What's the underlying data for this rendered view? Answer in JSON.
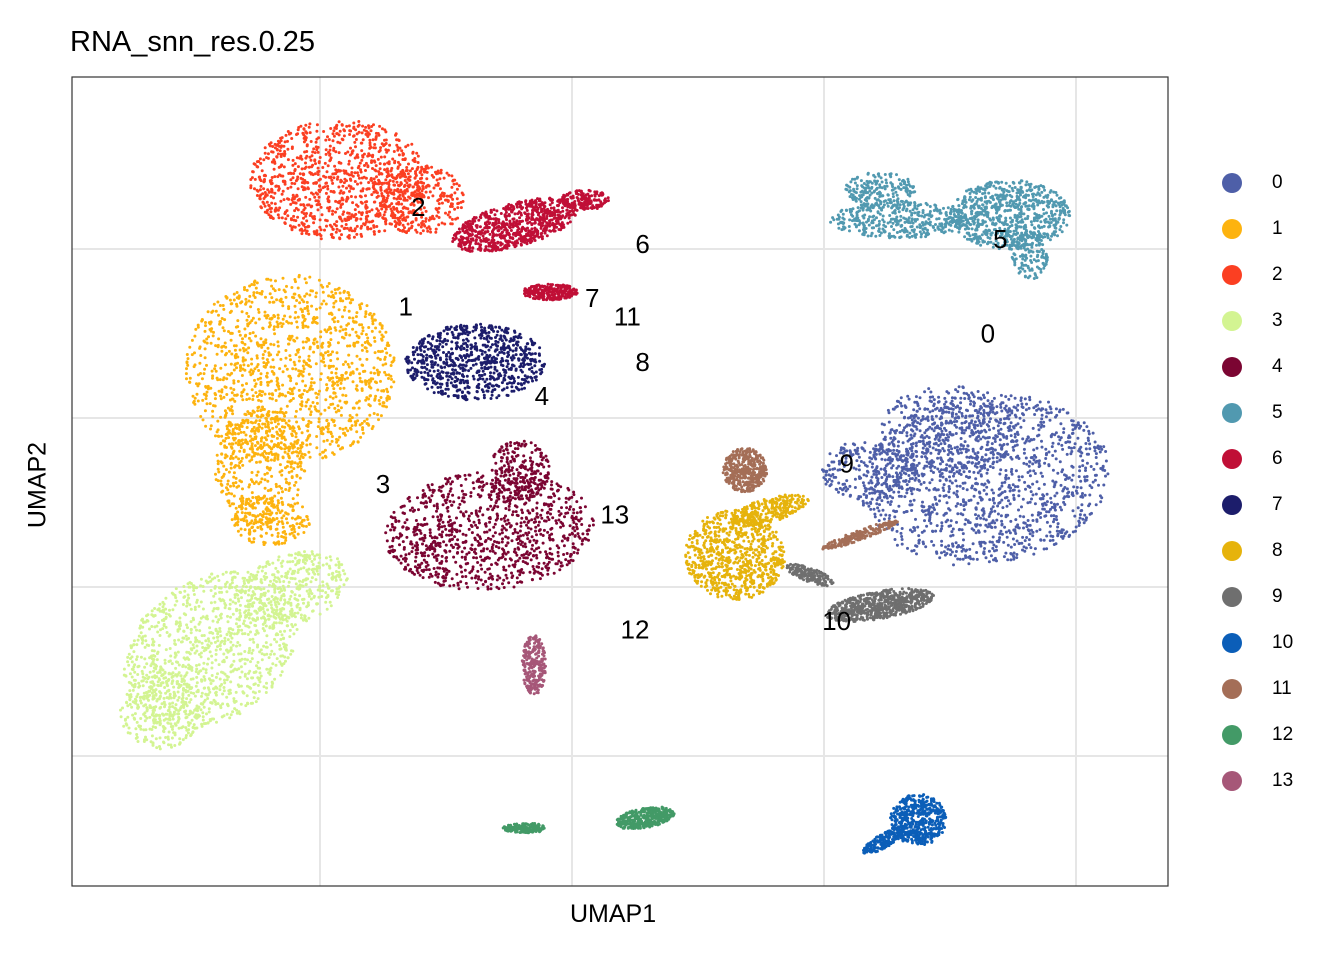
{
  "chart_data": {
    "type": "scatter",
    "title": "RNA_snn_res.0.25",
    "xlabel": "UMAP1",
    "ylabel": "UMAP2",
    "grid": true,
    "axis_ticks_labeled": false,
    "legend_position": "right",
    "clusters": [
      {
        "name": "0",
        "label": "0",
        "color": "#4E5FA8",
        "centroid": [
          16.5,
          5.0
        ]
      },
      {
        "name": "1",
        "label": "1",
        "color": "#FDB30F",
        "centroid": [
          -6.6,
          6.6
        ]
      },
      {
        "name": "2",
        "label": "2",
        "color": "#FB3F22",
        "centroid": [
          -6.1,
          12.5
        ]
      },
      {
        "name": "3",
        "label": "3",
        "color": "#D3F492",
        "centroid": [
          -7.5,
          -3.9
        ]
      },
      {
        "name": "4",
        "label": "4",
        "color": "#7B0532",
        "centroid": [
          -1.2,
          1.3
        ]
      },
      {
        "name": "5",
        "label": "5",
        "color": "#5199B0",
        "centroid": [
          17.0,
          10.6
        ]
      },
      {
        "name": "6",
        "label": "6",
        "color": "#C00F36",
        "centroid": [
          2.8,
          10.3
        ]
      },
      {
        "name": "7",
        "label": "7",
        "color": "#1C1D6B",
        "centroid": [
          0.8,
          7.1
        ]
      },
      {
        "name": "8",
        "label": "8",
        "color": "#E6B30C",
        "centroid": [
          2.8,
          3.3
        ]
      },
      {
        "name": "9",
        "label": "9",
        "color": "#6F6F6F",
        "centroid": [
          10.9,
          -2.7
        ]
      },
      {
        "name": "10",
        "label": "10",
        "color": "#0B5EB8",
        "centroid": [
          10.5,
          -12.0
        ]
      },
      {
        "name": "11",
        "label": "11",
        "color": "#A46E57",
        "centroid": [
          2.2,
          6.0
        ]
      },
      {
        "name": "12",
        "label": "12",
        "color": "#439A67",
        "centroid": [
          2.5,
          -12.5
        ]
      },
      {
        "name": "13",
        "label": "13",
        "color": "#A65778",
        "centroid": [
          1.7,
          -5.7
        ]
      }
    ]
  }
}
